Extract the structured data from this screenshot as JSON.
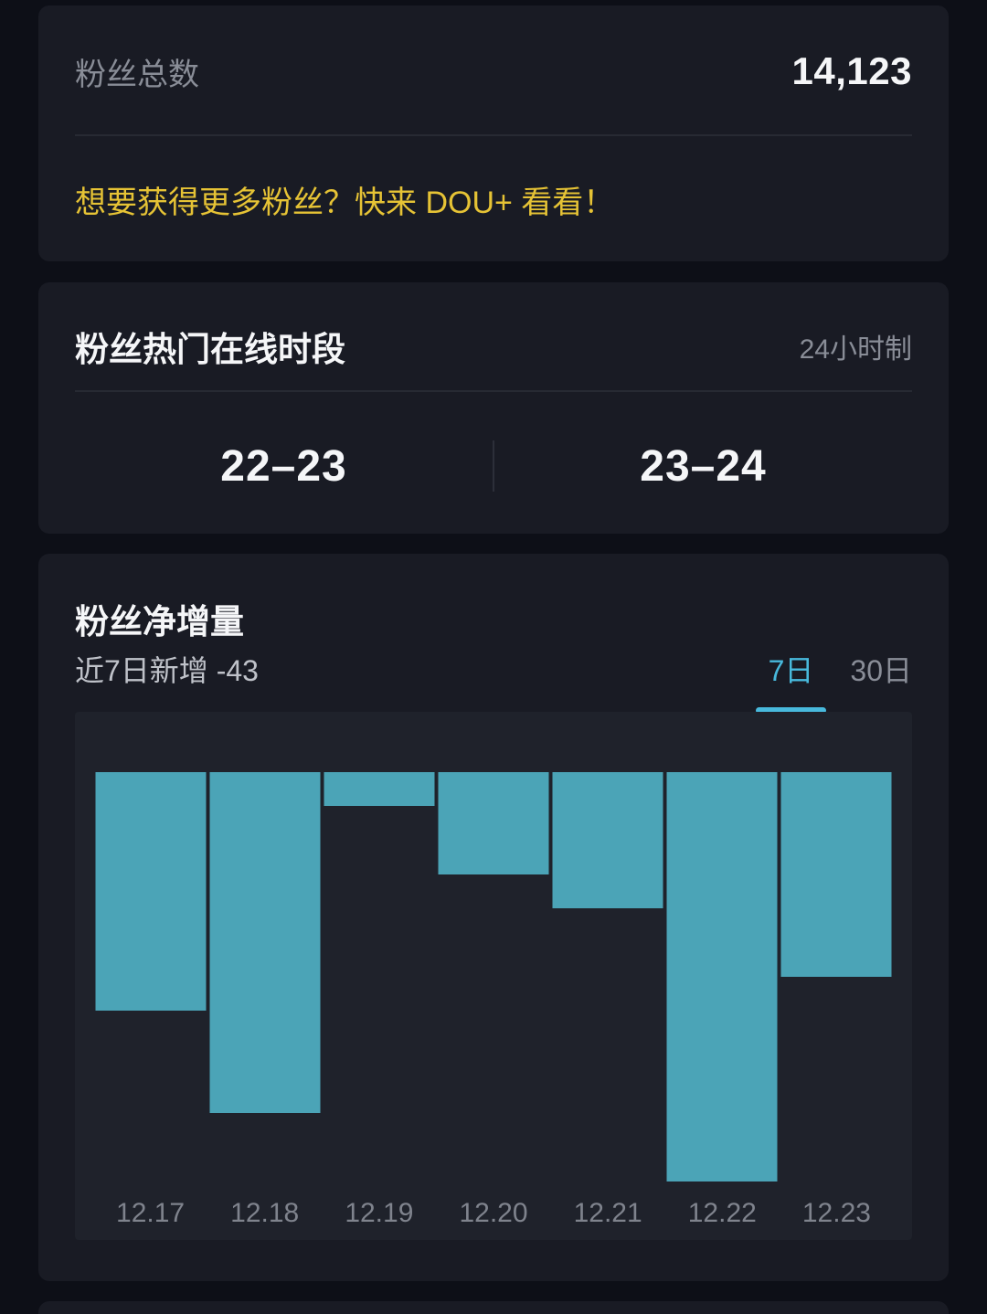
{
  "cards": {
    "fans_total": {
      "label": "粉丝总数",
      "value": "14,123",
      "promo": "想要获得更多粉丝？快来 DOU+ 看看！"
    },
    "online_time": {
      "title": "粉丝热门在线时段",
      "format_label": "24小时制",
      "slots": [
        "22–23",
        "23–24"
      ]
    },
    "net_growth": {
      "title": "粉丝净增量",
      "subtitle": "近7日新增 -43",
      "tabs": [
        {
          "label": "7日",
          "active": true
        },
        {
          "label": "30日",
          "active": false
        }
      ]
    }
  },
  "colors": {
    "page_background": "#0d0f17",
    "card_background": "#191b24",
    "plot_background": "#1f222b",
    "bar_teal": "#4ba4b7",
    "accent_cyan": "#48b9dc",
    "promo_yellow": "#e6c335"
  },
  "chart_data": {
    "type": "bar",
    "title": "粉丝净增量",
    "subtitle_total": "近7日新增 -43",
    "categories": [
      "12.17",
      "12.18",
      "12.19",
      "12.20",
      "12.21",
      "12.22",
      "12.23"
    ],
    "values": [
      -7,
      -10,
      -1,
      -3,
      -4,
      -12,
      -6
    ],
    "xlabel": "",
    "ylabel": "",
    "ylim": [
      -12,
      0
    ],
    "grid": false,
    "legend": false,
    "bars_hang_from_top_baseline": true,
    "bar_color": "#4ba4b7"
  }
}
